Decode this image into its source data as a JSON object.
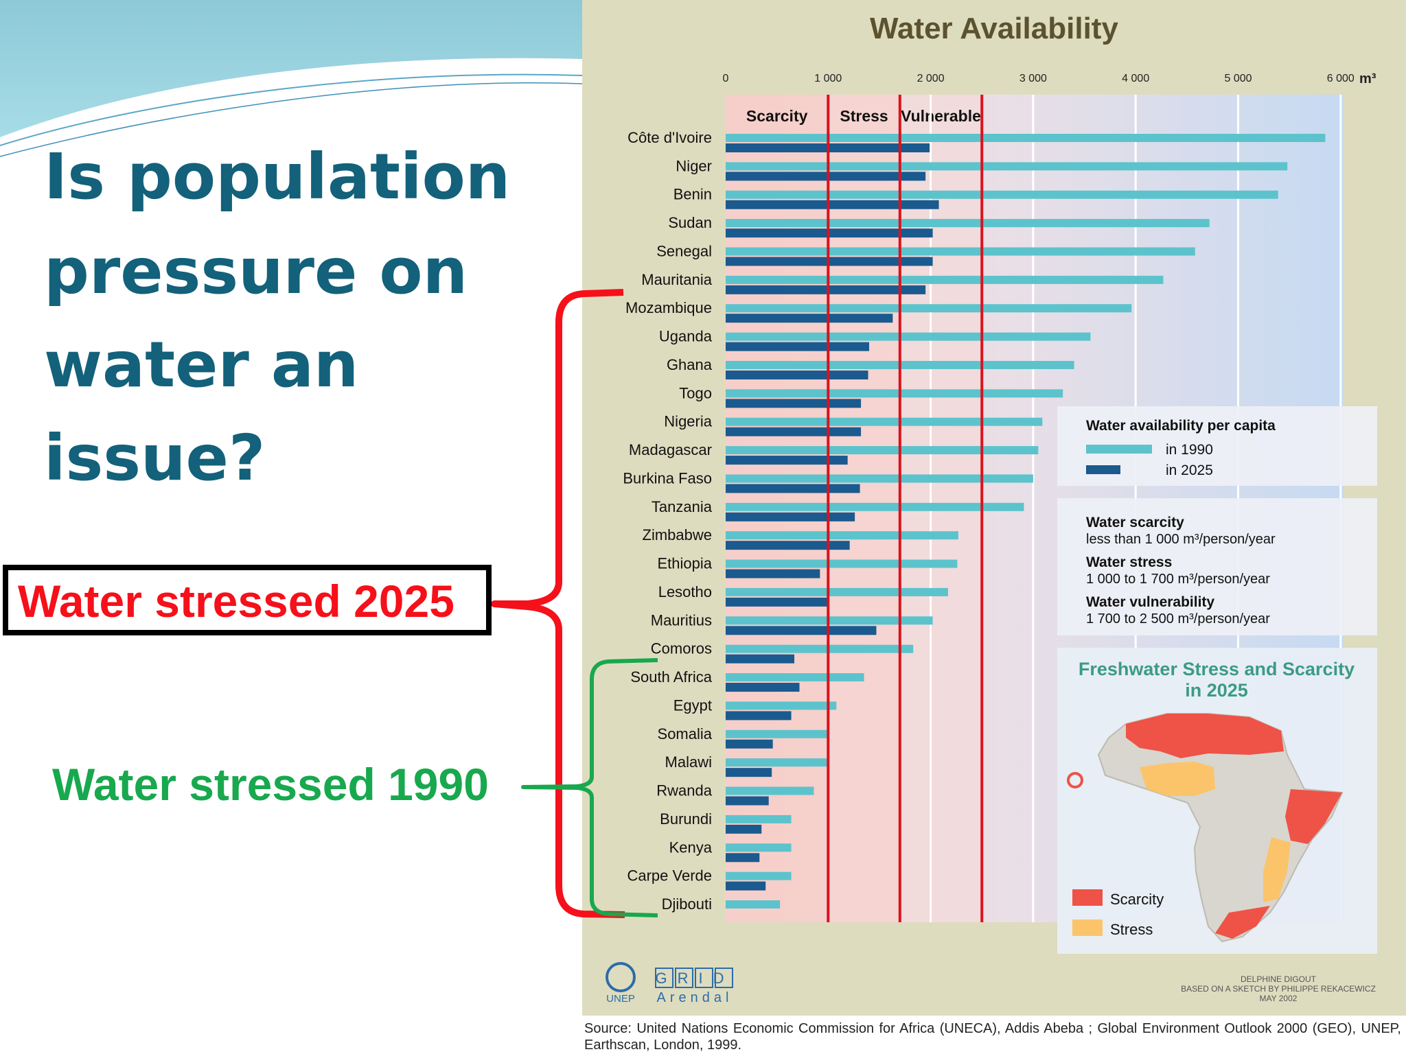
{
  "slide": {
    "title_lines": [
      "Is population",
      "pressure on",
      "water an",
      "issue?"
    ],
    "label_2025": "Water stressed 2025",
    "label_1990": "Water stressed 1990",
    "source": "Source: United Nations Economic Commission for Africa (UNECA), Addis Abeba ; Global Environment Outlook 2000 (GEO), UNEP, Earthscan, London, 1999.",
    "colors": {
      "title": "#13617a",
      "red": "#f5101a",
      "green": "#18a84e"
    }
  },
  "chart_data": {
    "type": "bar",
    "orientation": "horizontal",
    "title": "Water Availability",
    "unit": "m³",
    "xlim": [
      0,
      6000
    ],
    "x_ticks": [
      "0",
      "1 000",
      "2 000",
      "3 000",
      "4 000",
      "5 000",
      "6 000"
    ],
    "categories": [
      "Côte d'Ivoire",
      "Niger",
      "Benin",
      "Sudan",
      "Senegal",
      "Mauritania",
      "Mozambique",
      "Uganda",
      "Ghana",
      "Togo",
      "Nigeria",
      "Madagascar",
      "Burkina Faso",
      "Tanzania",
      "Zimbabwe",
      "Ethiopia",
      "Lesotho",
      "Mauritius",
      "Comoros",
      "South Africa",
      "Egypt",
      "Somalia",
      "Malawi",
      "Rwanda",
      "Burundi",
      "Kenya",
      "Carpe Verde",
      "Djibouti"
    ],
    "series": [
      {
        "name": "in 1990",
        "color": "#5cc3cc",
        "values": [
          5850,
          5480,
          5390,
          4720,
          4580,
          4270,
          3960,
          3560,
          3400,
          3290,
          3090,
          3050,
          3000,
          2910,
          2270,
          2260,
          2170,
          2020,
          1830,
          1350,
          1080,
          990,
          990,
          860,
          640,
          640,
          640,
          530
        ]
      },
      {
        "name": "in 2025",
        "color": "#1a5a8e",
        "values": [
          1990,
          1950,
          2080,
          2020,
          2020,
          1950,
          1630,
          1400,
          1390,
          1320,
          1320,
          1190,
          1310,
          1260,
          1210,
          920,
          990,
          1470,
          670,
          720,
          640,
          460,
          450,
          420,
          350,
          330,
          390,
          0
        ]
      }
    ],
    "zones": [
      {
        "label": "Scarcity",
        "range": [
          0,
          1000
        ],
        "color": "#f6cfca"
      },
      {
        "label": "Stress",
        "range": [
          1000,
          1700
        ],
        "color": "#f6d3d0"
      },
      {
        "label": "Vulnerable",
        "range": [
          1700,
          2500
        ],
        "color": "#f2dadb"
      }
    ],
    "threshold_lines": [
      1000,
      1700,
      2500
    ],
    "legend": {
      "title": "Water availability per capita",
      "items": [
        {
          "label": "in 1990",
          "color": "#5cc3cc"
        },
        {
          "label": "in 2025",
          "color": "#1a5a8e"
        }
      ]
    },
    "definitions": [
      {
        "title": "Water scarcity",
        "text": "less than 1 000 m³/person/year"
      },
      {
        "title": "Water stress",
        "text": "1 000 to 1 700 m³/person/year"
      },
      {
        "title": "Water vulnerability",
        "text": "1 700 to 2 500 m³/person/year"
      }
    ],
    "inset_map": {
      "title_lines": [
        "Freshwater Stress and Scarcity",
        "in 2025"
      ],
      "legend": [
        {
          "label": "Scarcity",
          "color": "#ef5246"
        },
        {
          "label": "Stress",
          "color": "#fbc46a"
        }
      ]
    },
    "credits": {
      "unep": "UNEP",
      "grid": "GRID",
      "arendal": "Arendal",
      "author_lines": [
        "DELPHINE DIGOUT",
        "BASED ON A SKETCH BY PHILIPPE REKACEWICZ",
        "MAY 2002"
      ]
    }
  }
}
